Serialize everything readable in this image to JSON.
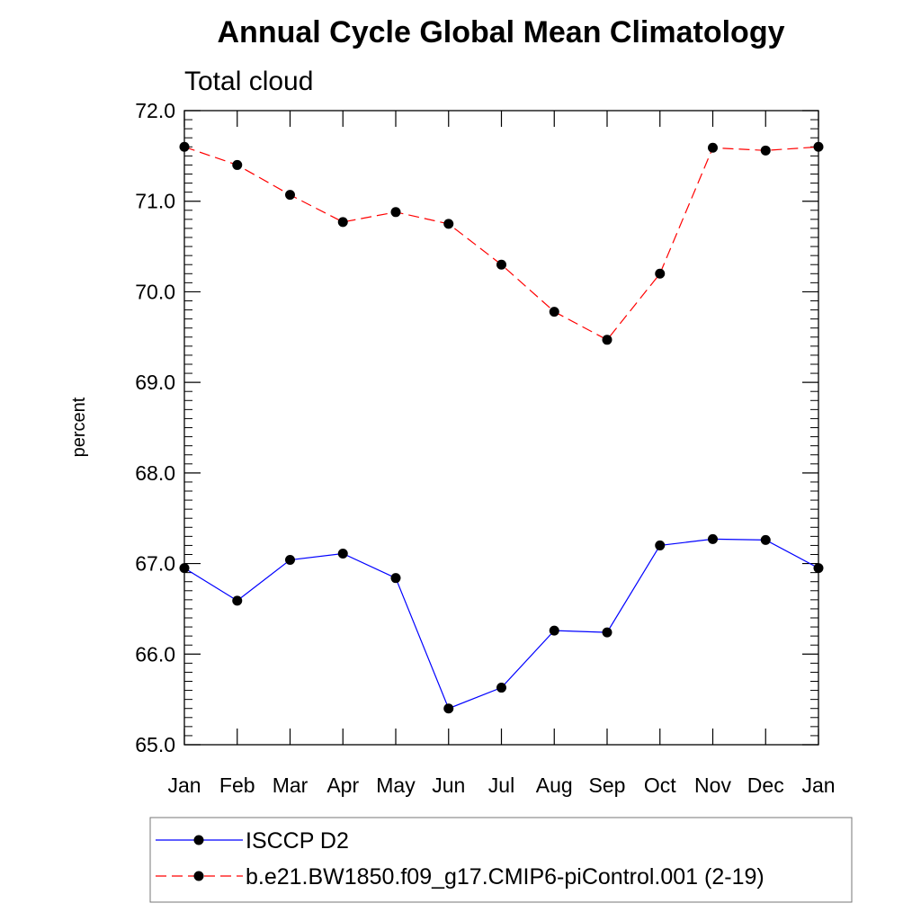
{
  "chart_data": {
    "type": "line",
    "title": "Annual Cycle Global Mean Climatology",
    "subtitle": "Total cloud",
    "xlabel": "",
    "ylabel": "percent",
    "categories": [
      "Jan",
      "Feb",
      "Mar",
      "Apr",
      "May",
      "Jun",
      "Jul",
      "Aug",
      "Sep",
      "Oct",
      "Nov",
      "Dec",
      "Jan"
    ],
    "ylim": [
      65.0,
      72.0
    ],
    "yticks": [
      "65.0",
      "66.0",
      "67.0",
      "68.0",
      "69.0",
      "70.0",
      "71.0",
      "72.0"
    ],
    "grid": false,
    "legend_position": "bottom",
    "series": [
      {
        "name": "ISCCP D2",
        "color": "#0000ff",
        "line_style": "solid",
        "marker": "filled-circle",
        "values": [
          66.95,
          66.59,
          67.04,
          67.11,
          66.84,
          65.4,
          65.63,
          66.26,
          66.24,
          67.2,
          67.27,
          67.26,
          66.95
        ]
      },
      {
        "name": "b.e21.BW1850.f09_g17.CMIP6-piControl.001 (2-19)",
        "color": "#ff0000",
        "line_style": "dashed",
        "marker": "filled-circle",
        "values": [
          71.6,
          71.4,
          71.07,
          70.77,
          70.88,
          70.75,
          70.3,
          69.78,
          69.47,
          70.2,
          71.59,
          71.56,
          71.6
        ]
      }
    ]
  }
}
